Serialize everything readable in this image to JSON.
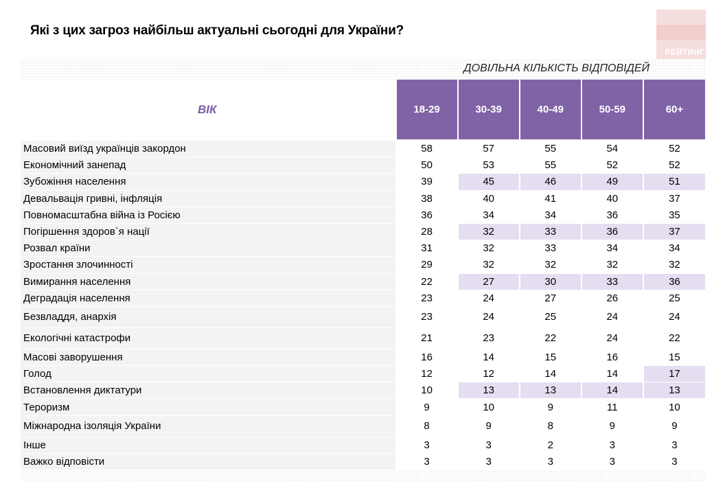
{
  "title": "Які з цих загроз найбільш актуальні сьогодні для України?",
  "logo_text": "РЕЙТИНГ",
  "subtitle": "ДОВІЛЬНА КІЛЬКІСТЬ ВІДПОВІДЕЙ",
  "colors": {
    "header": "#7f63a6",
    "highlight": "#e5def0",
    "label_bg": "#f3f3f4",
    "vik_text": "#7c5ea8"
  },
  "chart_data": {
    "type": "table",
    "row_header": "ВІК",
    "columns": [
      "18-29",
      "30-39",
      "40-49",
      "50-59",
      "60+"
    ],
    "rows": [
      {
        "label": "Масовий виїзд українців закордон",
        "values": [
          58,
          57,
          55,
          54,
          52
        ],
        "highlight": [
          false,
          false,
          false,
          false,
          false
        ]
      },
      {
        "label": "Економічний занепад",
        "values": [
          50,
          53,
          55,
          52,
          52
        ],
        "highlight": [
          false,
          false,
          false,
          false,
          false
        ]
      },
      {
        "label": "Зубожіння населення",
        "values": [
          39,
          45,
          46,
          49,
          51
        ],
        "highlight": [
          false,
          true,
          true,
          true,
          true
        ]
      },
      {
        "label": "Девальвація гривні, інфляція",
        "values": [
          38,
          40,
          41,
          40,
          37
        ],
        "highlight": [
          false,
          false,
          false,
          false,
          false
        ]
      },
      {
        "label": "Повномасштабна війна із Росією",
        "values": [
          36,
          34,
          34,
          36,
          35
        ],
        "highlight": [
          false,
          false,
          false,
          false,
          false
        ]
      },
      {
        "label": "Погіршення здоров`я нації",
        "values": [
          28,
          32,
          33,
          36,
          37
        ],
        "highlight": [
          false,
          true,
          true,
          true,
          true
        ]
      },
      {
        "label": "Розвал країни",
        "values": [
          31,
          32,
          33,
          34,
          34
        ],
        "highlight": [
          false,
          false,
          false,
          false,
          false
        ]
      },
      {
        "label": "Зростання злочинності",
        "values": [
          29,
          32,
          32,
          32,
          32
        ],
        "highlight": [
          false,
          false,
          false,
          false,
          false
        ]
      },
      {
        "label": "Вимирання населення",
        "values": [
          22,
          27,
          30,
          33,
          36
        ],
        "highlight": [
          false,
          true,
          true,
          true,
          true
        ]
      },
      {
        "label": "Деградація населення",
        "values": [
          23,
          24,
          27,
          26,
          25
        ],
        "highlight": [
          false,
          false,
          false,
          false,
          false
        ]
      },
      {
        "label": "Безвладдя, анархія",
        "values": [
          23,
          24,
          25,
          24,
          24
        ],
        "highlight": [
          false,
          false,
          false,
          false,
          false
        ]
      },
      {
        "label": "Екологічні катастрофи",
        "values": [
          21,
          23,
          22,
          24,
          22
        ],
        "highlight": [
          false,
          false,
          false,
          false,
          false
        ]
      },
      {
        "label": "Масові заворушення",
        "values": [
          16,
          14,
          15,
          16,
          15
        ],
        "highlight": [
          false,
          false,
          false,
          false,
          false
        ]
      },
      {
        "label": "Голод",
        "values": [
          12,
          12,
          14,
          14,
          17
        ],
        "highlight": [
          false,
          false,
          false,
          false,
          true
        ]
      },
      {
        "label": "Встановлення диктатури",
        "values": [
          10,
          13,
          13,
          14,
          13
        ],
        "highlight": [
          false,
          true,
          true,
          true,
          true
        ]
      },
      {
        "label": "Тероризм",
        "values": [
          9,
          10,
          9,
          11,
          10
        ],
        "highlight": [
          false,
          false,
          false,
          false,
          false
        ]
      },
      {
        "label": "Міжнародна ізоляція України",
        "values": [
          8,
          9,
          8,
          9,
          9
        ],
        "highlight": [
          false,
          false,
          false,
          false,
          false
        ]
      },
      {
        "label": "Інше",
        "values": [
          3,
          3,
          2,
          3,
          3
        ],
        "highlight": [
          false,
          false,
          false,
          false,
          false
        ]
      },
      {
        "label": "Важко відповісти",
        "values": [
          3,
          3,
          3,
          3,
          3
        ],
        "highlight": [
          false,
          false,
          false,
          false,
          false
        ]
      }
    ]
  }
}
